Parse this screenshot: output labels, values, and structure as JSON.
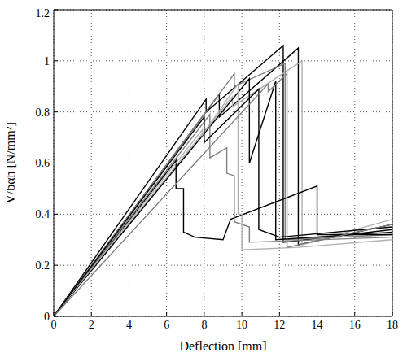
{
  "chart_data": {
    "type": "line",
    "xlabel": "Deflection [mm]",
    "ylabel": "V/bαh [N/mm²]",
    "xlim": [
      0,
      18
    ],
    "xticks": [
      0,
      2,
      4,
      6,
      8,
      10,
      12,
      14,
      16,
      18
    ],
    "ylim": [
      0,
      1.2
    ],
    "yticks": [
      0,
      0.2,
      0.4,
      0.6,
      0.8,
      1,
      1.2
    ],
    "grid": true,
    "series": [
      {
        "color": "#000000",
        "x": [
          0,
          8.1,
          8.1,
          12.2,
          12.2,
          18
        ],
        "values": [
          0,
          0.85,
          0.8,
          1.06,
          0.29,
          0.34
        ]
      },
      {
        "color": "#000000",
        "x": [
          0,
          8.8,
          8.8,
          13.0,
          13.0,
          18
        ],
        "values": [
          0,
          0.87,
          0.78,
          1.05,
          0.28,
          0.36
        ]
      },
      {
        "color": "#b0b0b0",
        "x": [
          0,
          9.5,
          9.5,
          13.2,
          13.2,
          18
        ],
        "values": [
          0,
          0.86,
          0.82,
          1.0,
          0.28,
          0.38
        ]
      },
      {
        "color": "#808080",
        "x": [
          0,
          9.6,
          9.6,
          12.3,
          12.3,
          18
        ],
        "values": [
          0,
          0.95,
          0.9,
          0.99,
          0.3,
          0.32
        ]
      },
      {
        "color": "#000000",
        "x": [
          0,
          10.4,
          10.4,
          11.8,
          11.8,
          18
        ],
        "values": [
          0,
          0.93,
          0.6,
          0.92,
          0.3,
          0.33
        ]
      },
      {
        "color": "#000000",
        "x": [
          0,
          6.5,
          6.5,
          6.9,
          6.9,
          7.5,
          9.0,
          9.4,
          14.0,
          14.0,
          18
        ],
        "values": [
          0,
          0.61,
          0.5,
          0.5,
          0.33,
          0.31,
          0.3,
          0.38,
          0.51,
          0.32,
          0.32
        ]
      },
      {
        "color": "#808080",
        "x": [
          0,
          8.3,
          8.3,
          9.2,
          9.2,
          9.6,
          9.6,
          10.4,
          10.4,
          18
        ],
        "values": [
          0,
          0.79,
          0.62,
          0.66,
          0.56,
          0.55,
          0.37,
          0.35,
          0.29,
          0.31
        ]
      },
      {
        "color": "#b0b0b0",
        "x": [
          0,
          7.9,
          7.9,
          9.8,
          9.8,
          10.0,
          10.0,
          13,
          18
        ],
        "values": [
          0,
          0.73,
          0.71,
          0.91,
          0.4,
          0.4,
          0.26,
          0.27,
          0.3
        ]
      },
      {
        "color": "#000000",
        "x": [
          0,
          8.0,
          8.0,
          10.9,
          10.9,
          12,
          18
        ],
        "values": [
          0,
          0.78,
          0.68,
          0.89,
          0.34,
          0.31,
          0.35
        ]
      },
      {
        "color": "#808080",
        "x": [
          0,
          11.4,
          11.4,
          12.4,
          12.4,
          18
        ],
        "values": [
          0,
          0.91,
          0.88,
          0.95,
          0.27,
          0.36
        ]
      }
    ]
  }
}
